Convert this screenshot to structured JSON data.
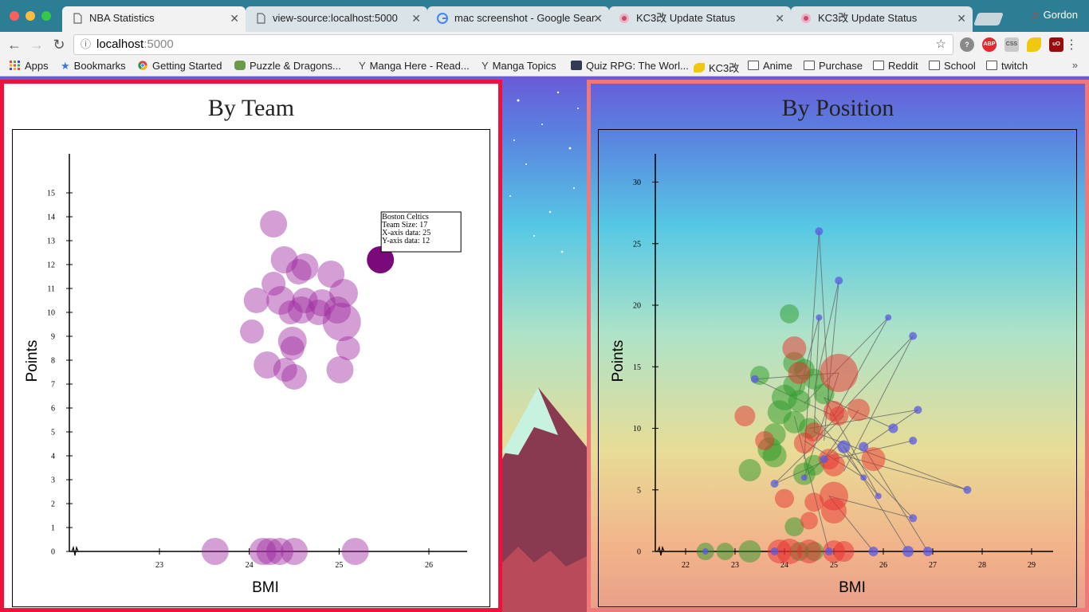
{
  "browser": {
    "tabs": [
      {
        "label": "NBA Statistics",
        "icon": "page-icon",
        "active": true
      },
      {
        "label": "view-source:localhost:5000",
        "icon": "page-icon",
        "active": false
      },
      {
        "label": "mac screenshot - Google Sear",
        "icon": "google-icon",
        "active": false
      },
      {
        "label": "KC3改 Update Status",
        "icon": "kc3-icon",
        "active": false
      },
      {
        "label": "KC3改 Update Status",
        "icon": "kc3-icon",
        "active": false
      }
    ],
    "profile_name": "Gordon",
    "url_host": "localhost",
    "url_port": ":5000",
    "bookmarks": [
      {
        "label": "Apps",
        "icon": "apps-grid-icon"
      },
      {
        "label": "Bookmarks",
        "icon": "star-icon"
      },
      {
        "label": "Getting Started",
        "icon": "chrome-icon"
      },
      {
        "label": "Puzzle & Dragons...",
        "icon": "pad-icon"
      },
      {
        "label": "Manga Here - Read...",
        "icon": "manga-icon"
      },
      {
        "label": "Manga Topics",
        "icon": "manga-icon"
      },
      {
        "label": "Quiz RPG: The Worl...",
        "icon": "quiz-icon"
      },
      {
        "label": "KC3改",
        "icon": "kc3-icon"
      },
      {
        "label": "Anime",
        "icon": "folder-icon"
      },
      {
        "label": "Purchase",
        "icon": "folder-icon"
      },
      {
        "label": "Reddit",
        "icon": "folder-icon"
      },
      {
        "label": "School",
        "icon": "folder-icon"
      },
      {
        "label": "twitch",
        "icon": "folder-icon"
      }
    ],
    "bookmarks_more": "»",
    "extensions": [
      {
        "label": "?",
        "color": "#8a8a8a"
      },
      {
        "label": "ABP",
        "color": "#e8262d"
      },
      {
        "label": "CSS",
        "color": "#c9c9c9"
      },
      {
        "label": "",
        "color": "#f2c80f"
      },
      {
        "label": "uO",
        "color": "#9b0b0b"
      }
    ]
  },
  "left_panel": {
    "title": "By Team",
    "chart_data": {
      "type": "scatter",
      "xlabel": "BMI",
      "ylabel": "Points",
      "xlim": [
        22.0,
        26.4
      ],
      "ylim": [
        0,
        16.6
      ],
      "x_ticks": [
        23,
        24,
        25,
        26
      ],
      "y_ticks": [
        0,
        1,
        2,
        3,
        4,
        5,
        6,
        7,
        8,
        9,
        10,
        11,
        12,
        13,
        14,
        15
      ],
      "point_color": "#9d2ba0",
      "highlight_color": "#7a0a7a",
      "points": [
        {
          "x": 24.27,
          "y": 13.7,
          "r": 17
        },
        {
          "x": 24.39,
          "y": 12.2,
          "r": 17
        },
        {
          "x": 24.62,
          "y": 11.9,
          "r": 17
        },
        {
          "x": 24.55,
          "y": 11.7,
          "r": 16
        },
        {
          "x": 24.91,
          "y": 11.6,
          "r": 17
        },
        {
          "x": 24.27,
          "y": 11.2,
          "r": 15
        },
        {
          "x": 25.05,
          "y": 10.8,
          "r": 18
        },
        {
          "x": 24.08,
          "y": 10.5,
          "r": 16
        },
        {
          "x": 24.35,
          "y": 10.5,
          "r": 18
        },
        {
          "x": 24.62,
          "y": 10.5,
          "r": 16
        },
        {
          "x": 24.81,
          "y": 10.4,
          "r": 17
        },
        {
          "x": 24.58,
          "y": 10.1,
          "r": 17
        },
        {
          "x": 24.46,
          "y": 10.0,
          "r": 15
        },
        {
          "x": 24.77,
          "y": 10.0,
          "r": 16
        },
        {
          "x": 24.98,
          "y": 10.1,
          "r": 17
        },
        {
          "x": 25.03,
          "y": 9.6,
          "r": 24
        },
        {
          "x": 24.03,
          "y": 9.2,
          "r": 15
        },
        {
          "x": 24.48,
          "y": 8.8,
          "r": 18
        },
        {
          "x": 24.48,
          "y": 8.5,
          "r": 15
        },
        {
          "x": 25.1,
          "y": 8.5,
          "r": 15
        },
        {
          "x": 24.2,
          "y": 7.8,
          "r": 17
        },
        {
          "x": 24.4,
          "y": 7.6,
          "r": 15
        },
        {
          "x": 24.5,
          "y": 7.3,
          "r": 16
        },
        {
          "x": 25.01,
          "y": 7.6,
          "r": 17
        },
        {
          "x": 23.62,
          "y": 0.0,
          "r": 17
        },
        {
          "x": 24.15,
          "y": 0.0,
          "r": 17
        },
        {
          "x": 24.23,
          "y": 0.0,
          "r": 17
        },
        {
          "x": 24.34,
          "y": 0.0,
          "r": 17
        },
        {
          "x": 24.5,
          "y": 0.0,
          "r": 17
        },
        {
          "x": 25.18,
          "y": 0.0,
          "r": 17
        },
        {
          "x": 25.46,
          "y": 12.2,
          "r": 17,
          "highlight": true
        }
      ],
      "tooltip": {
        "lines": [
          "Boston Celtics",
          "Team Size: 17",
          "X-axis data: 25",
          "Y-axis data: 12"
        ]
      }
    }
  },
  "right_panel": {
    "title": "By Position",
    "chart_data": {
      "type": "scatter",
      "xlabel": "BMI",
      "ylabel": "Points",
      "xlim": [
        20.6,
        29.4
      ],
      "ylim": [
        0,
        32.4
      ],
      "x_ticks": [
        22,
        23,
        24,
        25,
        26,
        27,
        28,
        29
      ],
      "y_ticks": [
        0,
        5,
        10,
        15,
        20,
        25,
        30
      ],
      "series": [
        {
          "color": "#2a9a2a",
          "points": [
            {
              "x": 24.1,
              "y": 19.3,
              "r": 12
            },
            {
              "x": 23.5,
              "y": 14.3,
              "r": 12
            },
            {
              "x": 24.2,
              "y": 15.3,
              "r": 14
            },
            {
              "x": 24.4,
              "y": 14.8,
              "r": 13
            },
            {
              "x": 24.6,
              "y": 14.0,
              "r": 13
            },
            {
              "x": 24.2,
              "y": 13.5,
              "r": 14
            },
            {
              "x": 24.0,
              "y": 12.5,
              "r": 16
            },
            {
              "x": 24.3,
              "y": 12.2,
              "r": 14
            },
            {
              "x": 24.8,
              "y": 12.8,
              "r": 13
            },
            {
              "x": 23.9,
              "y": 11.3,
              "r": 15
            },
            {
              "x": 24.2,
              "y": 10.5,
              "r": 14
            },
            {
              "x": 24.5,
              "y": 10.0,
              "r": 13
            },
            {
              "x": 23.8,
              "y": 9.5,
              "r": 14
            },
            {
              "x": 23.7,
              "y": 8.3,
              "r": 15
            },
            {
              "x": 23.8,
              "y": 7.8,
              "r": 15
            },
            {
              "x": 24.6,
              "y": 7.0,
              "r": 13
            },
            {
              "x": 24.4,
              "y": 6.3,
              "r": 14
            },
            {
              "x": 23.3,
              "y": 6.6,
              "r": 14
            },
            {
              "x": 24.2,
              "y": 2.0,
              "r": 12
            },
            {
              "x": 22.4,
              "y": 0,
              "r": 11
            },
            {
              "x": 22.8,
              "y": 0,
              "r": 11
            },
            {
              "x": 23.3,
              "y": 0,
              "r": 14
            },
            {
              "x": 24.3,
              "y": 0,
              "r": 12
            },
            {
              "x": 24.6,
              "y": 0,
              "r": 12
            }
          ]
        },
        {
          "color": "#e83030",
          "points": [
            {
              "x": 25.1,
              "y": 14.5,
              "r": 24
            },
            {
              "x": 24.2,
              "y": 16.5,
              "r": 15
            },
            {
              "x": 24.3,
              "y": 14.5,
              "r": 14
            },
            {
              "x": 23.2,
              "y": 11.0,
              "r": 13
            },
            {
              "x": 23.6,
              "y": 9.0,
              "r": 12
            },
            {
              "x": 25.1,
              "y": 11.0,
              "r": 12
            },
            {
              "x": 25.0,
              "y": 11.4,
              "r": 13
            },
            {
              "x": 25.5,
              "y": 11.5,
              "r": 14
            },
            {
              "x": 24.6,
              "y": 9.7,
              "r": 12
            },
            {
              "x": 24.9,
              "y": 7.5,
              "r": 13
            },
            {
              "x": 25.0,
              "y": 7.0,
              "r": 14
            },
            {
              "x": 25.8,
              "y": 7.5,
              "r": 15
            },
            {
              "x": 25.0,
              "y": 4.5,
              "r": 18
            },
            {
              "x": 24.0,
              "y": 4.3,
              "r": 12
            },
            {
              "x": 24.5,
              "y": 2.5,
              "r": 11
            },
            {
              "x": 24.6,
              "y": 4.0,
              "r": 12
            },
            {
              "x": 25.0,
              "y": 3.3,
              "r": 16
            },
            {
              "x": 24.4,
              "y": 8.8,
              "r": 13
            },
            {
              "x": 23.9,
              "y": 0,
              "r": 15
            },
            {
              "x": 24.1,
              "y": 0,
              "r": 16
            },
            {
              "x": 24.5,
              "y": 0,
              "r": 15
            },
            {
              "x": 25.0,
              "y": 0,
              "r": 14
            },
            {
              "x": 25.2,
              "y": 0,
              "r": 13
            }
          ]
        },
        {
          "color": "#5a5ae0",
          "points": [
            {
              "x": 24.7,
              "y": 26.0,
              "r": 5
            },
            {
              "x": 25.1,
              "y": 22.0,
              "r": 5
            },
            {
              "x": 24.7,
              "y": 19.0,
              "r": 4
            },
            {
              "x": 26.1,
              "y": 19.0,
              "r": 4
            },
            {
              "x": 26.6,
              "y": 17.5,
              "r": 5
            },
            {
              "x": 23.4,
              "y": 14.0,
              "r": 5
            },
            {
              "x": 26.7,
              "y": 11.5,
              "r": 5
            },
            {
              "x": 26.2,
              "y": 10.0,
              "r": 6
            },
            {
              "x": 26.6,
              "y": 9.0,
              "r": 5
            },
            {
              "x": 25.2,
              "y": 8.5,
              "r": 8
            },
            {
              "x": 25.6,
              "y": 8.5,
              "r": 6
            },
            {
              "x": 24.8,
              "y": 7.5,
              "r": 5
            },
            {
              "x": 27.7,
              "y": 5.0,
              "r": 5
            },
            {
              "x": 23.8,
              "y": 5.5,
              "r": 5
            },
            {
              "x": 25.6,
              "y": 6.0,
              "r": 4
            },
            {
              "x": 26.6,
              "y": 2.7,
              "r": 5
            },
            {
              "x": 24.4,
              "y": 6.0,
              "r": 4
            },
            {
              "x": 25.9,
              "y": 4.5,
              "r": 4
            },
            {
              "x": 22.4,
              "y": 0,
              "r": 4
            },
            {
              "x": 23.8,
              "y": 0,
              "r": 5
            },
            {
              "x": 25.8,
              "y": 0,
              "r": 6
            },
            {
              "x": 26.5,
              "y": 0,
              "r": 7
            },
            {
              "x": 26.9,
              "y": 0,
              "r": 6
            },
            {
              "x": 24.9,
              "y": 0,
              "r": 5
            }
          ]
        }
      ],
      "links": [
        [
          24.7,
          26.0,
          24.9,
          12.0
        ],
        [
          24.7,
          26.0,
          24.4,
          7.5
        ],
        [
          25.1,
          22.0,
          24.8,
          9.0
        ],
        [
          25.1,
          22.0,
          24.6,
          13.0
        ],
        [
          26.1,
          19.0,
          24.4,
          12.0
        ],
        [
          26.1,
          19.0,
          25.0,
          11.0
        ],
        [
          26.6,
          17.5,
          24.6,
          9.0
        ],
        [
          26.6,
          17.5,
          25.2,
          6.5
        ],
        [
          23.4,
          14.0,
          25.0,
          11.0
        ],
        [
          23.4,
          14.0,
          25.1,
          14.5
        ],
        [
          26.7,
          11.5,
          24.5,
          10.0
        ],
        [
          26.7,
          11.5,
          25.6,
          8.5
        ],
        [
          26.2,
          10.0,
          24.8,
          12.5
        ],
        [
          26.6,
          9.0,
          25.0,
          7.5
        ],
        [
          27.7,
          5.0,
          25.0,
          8.0
        ],
        [
          27.7,
          5.0,
          24.6,
          9.7
        ],
        [
          23.8,
          5.5,
          24.9,
          7.5
        ],
        [
          23.8,
          5.5,
          25.2,
          11.0
        ],
        [
          26.6,
          2.7,
          25.2,
          8.5
        ],
        [
          26.6,
          2.7,
          24.9,
          4.5
        ],
        [
          25.6,
          6.0,
          24.4,
          9.0
        ],
        [
          25.9,
          4.5,
          24.6,
          11.0
        ],
        [
          24.4,
          6.0,
          25.2,
          9.0
        ],
        [
          24.8,
          7.5,
          25.5,
          11.5
        ],
        [
          25.6,
          8.5,
          26.9,
          0.0
        ],
        [
          25.2,
          8.5,
          26.5,
          0.0
        ],
        [
          24.9,
          4.5,
          25.8,
          0.0
        ],
        [
          24.2,
          11.0,
          24.9,
          0.0
        ],
        [
          24.7,
          19.0,
          24.3,
          13.0
        ],
        [
          24.7,
          19.0,
          24.6,
          9.7
        ],
        [
          25.1,
          14.5,
          24.4,
          6.0
        ],
        [
          24.8,
          12.5,
          25.9,
          4.5
        ]
      ]
    }
  }
}
